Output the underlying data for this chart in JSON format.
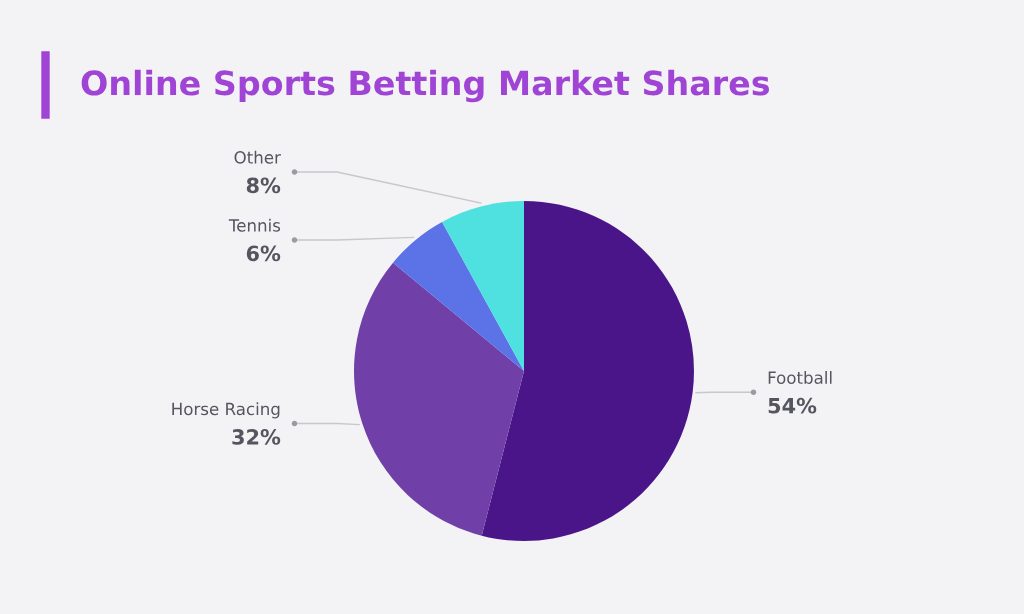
{
  "chart_data": {
    "type": "pie",
    "title": "Online Sports Betting Market Shares",
    "categories": [
      "Football",
      "Horse Racing",
      "Tennis",
      "Other"
    ],
    "values": [
      54,
      32,
      6,
      8
    ],
    "value_labels": [
      "54%",
      "32%",
      "6%",
      "8%"
    ],
    "colors": [
      "#4a1589",
      "#7040a8",
      "#5b73e6",
      "#4fe0e0"
    ]
  }
}
